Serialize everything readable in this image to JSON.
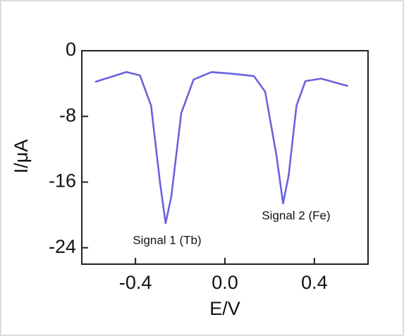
{
  "chart_data": {
    "type": "line",
    "x_label": "E/V",
    "y_label": "I/μA",
    "x": [
      -0.58,
      -0.44,
      -0.38,
      -0.33,
      -0.29,
      -0.265,
      -0.24,
      -0.195,
      -0.14,
      -0.06,
      0.03,
      0.13,
      0.18,
      0.23,
      0.26,
      0.285,
      0.32,
      0.36,
      0.43,
      0.55
    ],
    "series": [
      {
        "name": "I",
        "color": "#6a63dc",
        "values": [
          -3.8,
          -2.6,
          -3.0,
          -6.7,
          -16.1,
          -21.0,
          -17.8,
          -7.6,
          -3.5,
          -2.6,
          -2.8,
          -3.1,
          -5.0,
          -12.7,
          -18.6,
          -15.2,
          -6.7,
          -3.7,
          -3.4,
          -4.3
        ]
      }
    ],
    "annotations": [
      "Signal 1 (Tb)",
      "Signal 2 (Fe)"
    ],
    "xlim": [
      -0.64,
      0.64
    ],
    "ylim": [
      -26,
      0
    ],
    "xticks": [
      -0.4,
      {
        "value": 0,
        "label": "0.0"
      },
      0.4
    ],
    "yticks": [
      0,
      -8,
      -16,
      -24
    ]
  }
}
